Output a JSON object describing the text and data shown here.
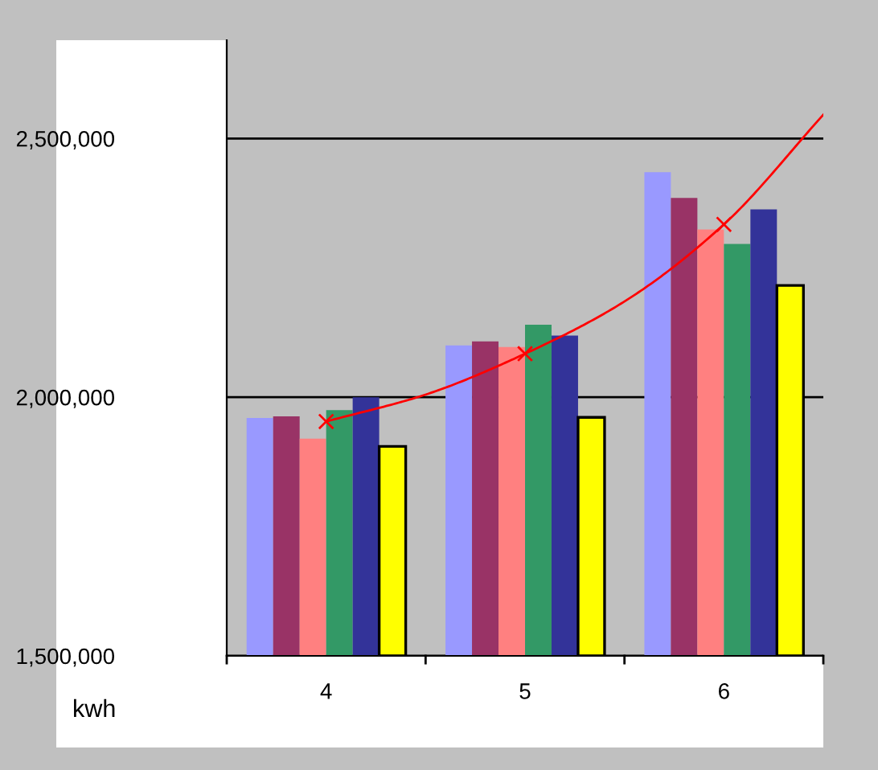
{
  "chart_data": {
    "type": "bar",
    "ylabel": "kwh",
    "x": [
      4,
      5,
      6
    ],
    "xlim": [
      3.5,
      6.5
    ],
    "xticks": [
      {
        "value": 3.5,
        "label": null
      },
      4,
      {
        "value": 4.5,
        "label": null
      },
      5,
      {
        "value": 5.5,
        "label": null
      },
      6,
      {
        "value": 6.5,
        "label": null
      }
    ],
    "series": [
      {
        "color": "#9999ff",
        "values": [
          1960000,
          2100000,
          2435000
        ]
      },
      {
        "color": "#993366",
        "values": [
          1963000,
          2108000,
          2385000
        ]
      },
      {
        "color": "#ff8080",
        "values": [
          1920000,
          2097000,
          2324000
        ]
      },
      {
        "color": "#339966",
        "values": [
          1975000,
          2140000,
          2296000
        ]
      },
      {
        "color": "#333399",
        "values": [
          2000000,
          2119000,
          2363000
        ]
      },
      {
        "color": "#ffff00",
        "values": [
          1905000,
          1961000,
          2216000
        ]
      },
      {
        "type": "scatter",
        "color": "#ff0000",
        "marker": "cross",
        "x": [
          4,
          5,
          6
        ],
        "values": [
          1953000,
          2084000,
          2334000
        ]
      },
      {
        "type": "line",
        "color": "#ff0000",
        "x": [
          4,
          4.5,
          5,
          5.5,
          6,
          6.5
        ],
        "values": [
          1953000,
          2005000,
          2084000,
          2185000,
          2334000,
          2546000
        ]
      }
    ],
    "ylim": [
      1500000,
      2690000
    ],
    "yticks": [
      {
        "value": 1500000,
        "label": "1,500,000"
      },
      {
        "value": 2000000,
        "label": "2,000,000"
      },
      {
        "value": 2500000,
        "label": "2,500,000"
      }
    ],
    "grid": "y",
    "legend": false
  }
}
